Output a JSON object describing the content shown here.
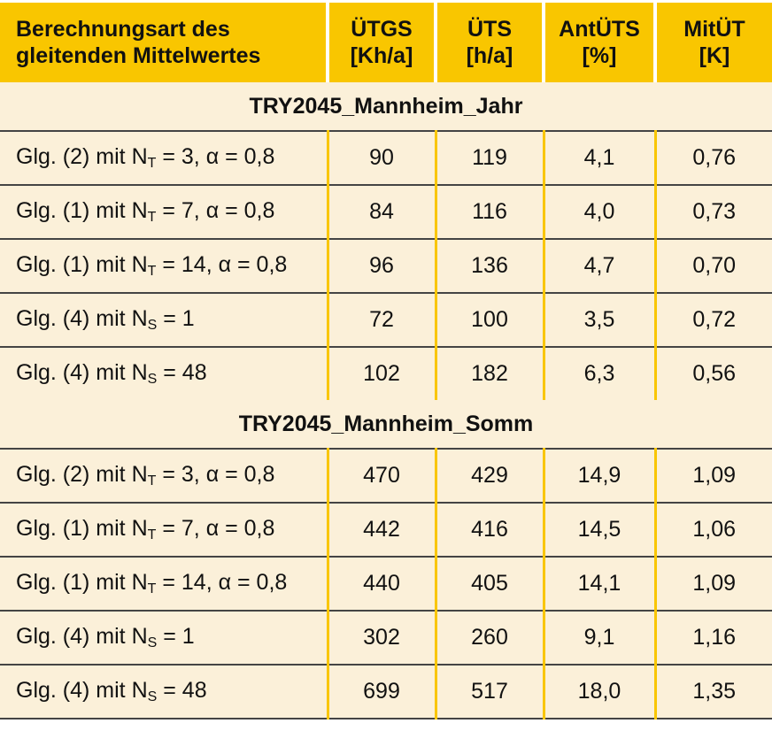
{
  "headers": [
    {
      "l1": "Berechnungsart des",
      "l2": "gleitenden Mittelwertes"
    },
    {
      "l1": "ÜTGS",
      "l2": "[Kh/a]"
    },
    {
      "l1": "ÜTS",
      "l2": "[h/a]"
    },
    {
      "l1": "AntÜTS",
      "l2": "[%]"
    },
    {
      "l1": "MitÜT",
      "l2": "[K]"
    }
  ],
  "sections": [
    {
      "title": "TRY2045_Mannheim_Jahr",
      "rows": [
        {
          "pre": "Glg. (2) mit N",
          "sub": "T",
          "post": " = 3, α = 0,8",
          "v": [
            "90",
            "119",
            "4,1",
            "0,76"
          ]
        },
        {
          "pre": "Glg. (1) mit N",
          "sub": "T",
          "post": " = 7, α = 0,8",
          "v": [
            "84",
            "116",
            "4,0",
            "0,73"
          ]
        },
        {
          "pre": "Glg. (1) mit N",
          "sub": "T",
          "post": " = 14, α = 0,8",
          "v": [
            "96",
            "136",
            "4,7",
            "0,70"
          ]
        },
        {
          "pre": "Glg. (4) mit N",
          "sub": "S",
          "post": " = 1",
          "v": [
            "72",
            "100",
            "3,5",
            "0,72"
          ]
        },
        {
          "pre": "Glg. (4) mit N",
          "sub": "S",
          "post": " = 48",
          "v": [
            "102",
            "182",
            "6,3",
            "0,56"
          ]
        }
      ]
    },
    {
      "title": "TRY2045_Mannheim_Somm",
      "rows": [
        {
          "pre": "Glg. (2) mit N",
          "sub": "T",
          "post": " = 3, α = 0,8",
          "v": [
            "470",
            "429",
            "14,9",
            "1,09"
          ]
        },
        {
          "pre": "Glg. (1) mit N",
          "sub": "T",
          "post": " = 7, α = 0,8",
          "v": [
            "442",
            "416",
            "14,5",
            "1,06"
          ]
        },
        {
          "pre": "Glg. (1) mit N",
          "sub": "T",
          "post": " = 14, α = 0,8",
          "v": [
            "440",
            "405",
            "14,1",
            "1,09"
          ]
        },
        {
          "pre": "Glg. (4) mit N",
          "sub": "S",
          "post": " = 1",
          "v": [
            "302",
            "260",
            "9,1",
            "1,16"
          ]
        },
        {
          "pre": "Glg. (4) mit N",
          "sub": "S",
          "post": " = 48",
          "v": [
            "699",
            "517",
            "18,0",
            "1,35"
          ]
        }
      ]
    }
  ],
  "colors": {
    "header": "#f9c600",
    "body": "#fbf0d9"
  }
}
